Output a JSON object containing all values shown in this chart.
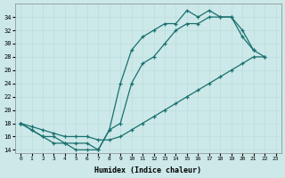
{
  "xlabel": "Humidex (Indice chaleur)",
  "background_color": "#cce8e8",
  "line_color": "#1a7070",
  "ylim": [
    13.5,
    36.0
  ],
  "xlim": [
    -0.5,
    23.5
  ],
  "yticks": [
    14,
    16,
    18,
    20,
    22,
    24,
    26,
    28,
    30,
    32,
    34
  ],
  "xticks": [
    0,
    1,
    2,
    3,
    4,
    5,
    6,
    7,
    8,
    9,
    10,
    11,
    12,
    13,
    14,
    15,
    16,
    17,
    18,
    19,
    20,
    21,
    22,
    23
  ],
  "curve1_x": [
    0,
    1,
    2,
    3,
    4,
    5,
    6,
    7,
    8,
    9,
    10,
    11,
    12,
    13,
    14,
    15,
    16,
    17,
    18,
    19,
    20,
    21
  ],
  "curve1_y": [
    18,
    17,
    16,
    15,
    15,
    14,
    14,
    14,
    17,
    24,
    29,
    31,
    32,
    33,
    33,
    35,
    34,
    35,
    34,
    34,
    32,
    29
  ],
  "curve2_x": [
    0,
    1,
    2,
    3,
    4,
    5,
    6,
    7,
    8,
    9,
    10,
    11,
    12,
    13,
    14,
    15,
    16,
    17,
    18,
    19,
    20,
    21,
    22
  ],
  "curve2_y": [
    18,
    17,
    16,
    16,
    15,
    15,
    15,
    14,
    17,
    18,
    24,
    27,
    28,
    30,
    32,
    33,
    33,
    34,
    34,
    34,
    31,
    29,
    28
  ],
  "curve3_x": [
    0,
    1,
    2,
    3,
    4,
    5,
    6,
    7,
    8,
    9,
    10,
    11,
    12,
    13,
    14,
    15,
    16,
    17,
    18,
    19,
    20,
    21,
    22
  ],
  "curve3_y": [
    18,
    17.5,
    17,
    16.5,
    16,
    16,
    16,
    15.5,
    15.5,
    16,
    17,
    18,
    19,
    20,
    21,
    22,
    23,
    24,
    25,
    26,
    27,
    28,
    28
  ]
}
